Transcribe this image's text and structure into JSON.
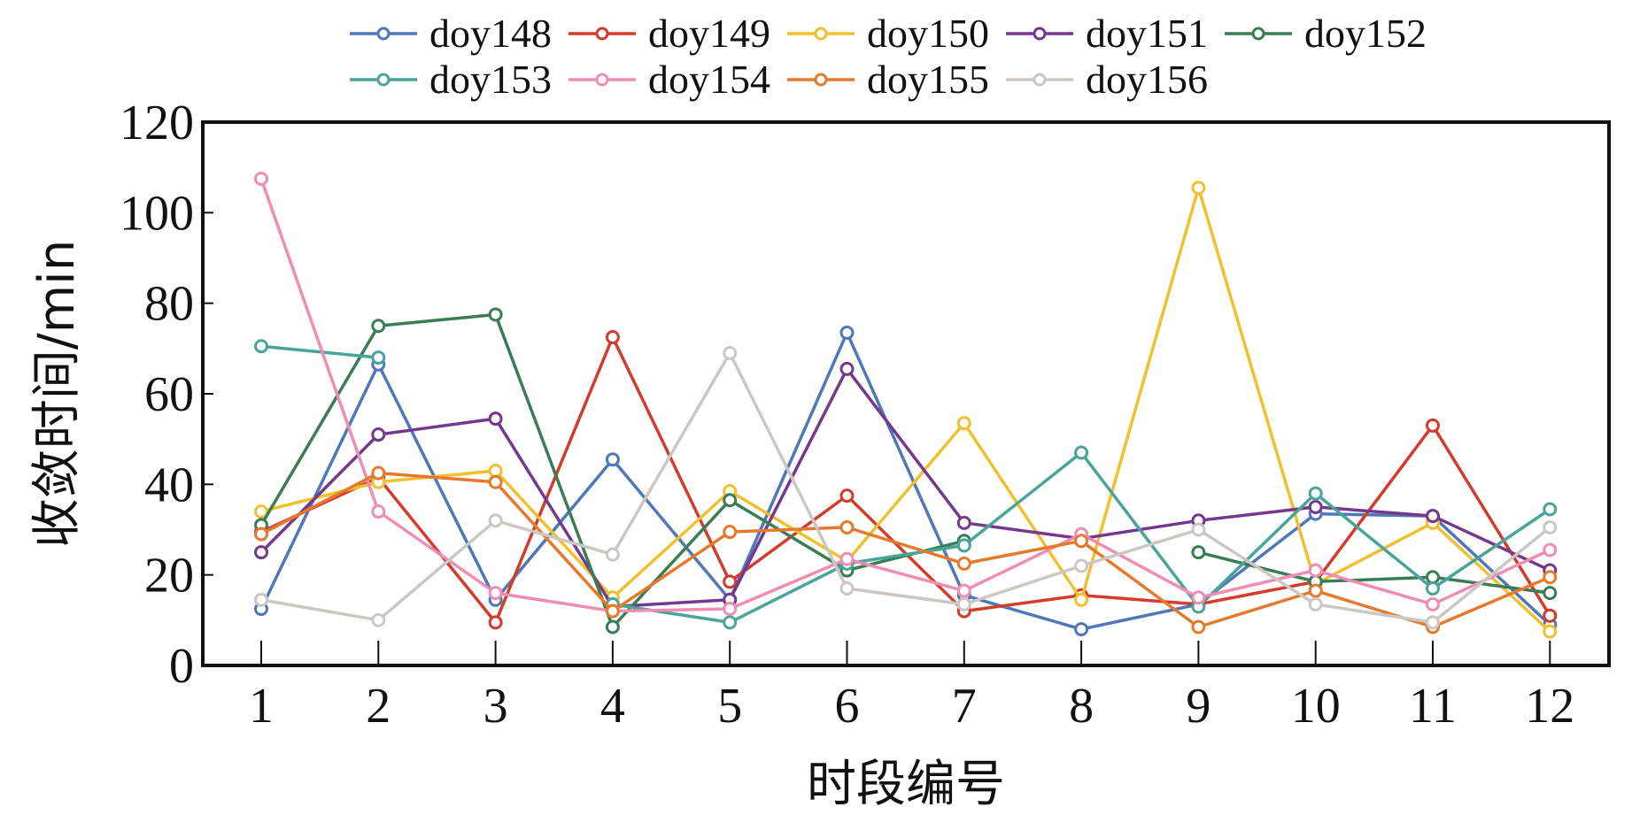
{
  "chart_data": {
    "type": "line",
    "title": "",
    "xlabel": "时段编号",
    "ylabel": "收敛时间/min",
    "categories": [
      "1",
      "2",
      "3",
      "4",
      "5",
      "6",
      "7",
      "8",
      "9",
      "10",
      "11",
      "12"
    ],
    "ylim": [
      0,
      120
    ],
    "yticks": [
      0,
      20,
      40,
      60,
      80,
      100,
      120
    ],
    "grid": false,
    "legend_position": "top",
    "series": [
      {
        "name": "doy148",
        "color": "#4f78b9",
        "values": [
          12.5,
          66.5,
          14.5,
          45.5,
          14.5,
          73.5,
          15.5,
          8,
          13.5,
          33.5,
          33,
          9
        ]
      },
      {
        "name": "doy149",
        "color": "#d33b2b",
        "values": [
          29.5,
          41.5,
          9.5,
          72.5,
          18.5,
          37.5,
          12,
          15.5,
          13.5,
          18.5,
          53,
          11
        ]
      },
      {
        "name": "doy150",
        "color": "#f0c02f",
        "values": [
          34,
          40.5,
          43,
          15,
          38.5,
          23,
          53.5,
          14.5,
          105.5,
          18,
          31.5,
          7.5
        ]
      },
      {
        "name": "doy151",
        "color": "#74398e",
        "values": [
          25,
          51,
          54.5,
          13,
          14.5,
          65.5,
          31.5,
          28,
          32,
          35,
          33,
          21
        ]
      },
      {
        "name": "doy152",
        "color": "#3a7d55",
        "values": [
          31,
          75,
          77.5,
          8.5,
          36.5,
          21,
          27.5,
          null,
          25,
          18.5,
          19.5,
          16
        ]
      },
      {
        "name": "doy153",
        "color": "#4aa49a",
        "values": [
          70.5,
          68,
          null,
          13.5,
          9.5,
          22.5,
          26.5,
          47,
          13,
          38,
          17,
          34.5
        ]
      },
      {
        "name": "doy154",
        "color": "#f08db5",
        "values": [
          107.5,
          34,
          16,
          12,
          12.5,
          23.5,
          16.5,
          29,
          15,
          21,
          13.5,
          25.5
        ]
      },
      {
        "name": "doy155",
        "color": "#e57a2c",
        "values": [
          29,
          42.5,
          40.5,
          12,
          29.5,
          30.5,
          22.5,
          27.5,
          8.5,
          16.5,
          8.5,
          19.5
        ]
      },
      {
        "name": "doy156",
        "color": "#cbc7c3",
        "values": [
          14.5,
          10,
          32,
          24.5,
          69,
          17,
          13.5,
          22,
          30,
          13.5,
          9.5,
          30.5
        ]
      }
    ]
  }
}
